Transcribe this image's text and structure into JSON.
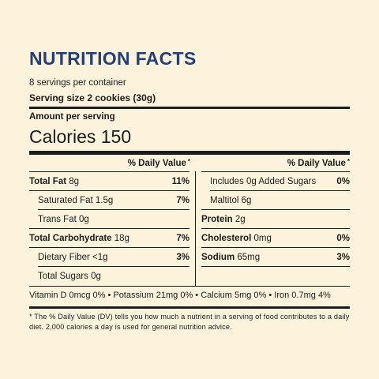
{
  "label": {
    "title": "NUTRITION FACTS",
    "servings_per_container": "8 servings per container",
    "serving_size": "Serving size 2 cookies (30g)",
    "amount_per_serving": "Amount per serving",
    "calories": "Calories 150",
    "dv_header": "% Daily Value",
    "dv_star": "*",
    "left_rows": [
      {
        "name": "Total Fat",
        "amount": "8g",
        "pct": "11%"
      },
      {
        "name": "Saturated Fat",
        "amount": "1.5g",
        "pct": "7%"
      },
      {
        "name": "Trans Fat",
        "amount": "0g",
        "pct": ""
      },
      {
        "name": "Total Carbohydrate",
        "amount": "18g",
        "pct": "7%"
      },
      {
        "name": "Dietary Fiber",
        "amount": "<1g",
        "pct": "3%"
      },
      {
        "name": "Total Sugars",
        "amount": "0g",
        "pct": ""
      }
    ],
    "right_rows": [
      {
        "name": "Includes 0g Added Sugars",
        "amount": "",
        "pct": "0%"
      },
      {
        "name": "Maltitol",
        "amount": "6g",
        "pct": ""
      },
      {
        "name": "Protein",
        "amount": "2g",
        "pct": ""
      },
      {
        "name": "Cholesterol",
        "amount": "0mg",
        "pct": "0%"
      },
      {
        "name": "Sodium",
        "amount": "65mg",
        "pct": "3%"
      }
    ],
    "vitamins": "Vitamin D 0mcg 0% • Potassium 21mg 0% • Calcium 5mg 0% • Iron 0.7mg 4%",
    "footnote": "* The % Daily Value (DV) tells you how much a nutrient in a serving of food contributes to a daily diet. 2,000 calories a day is used for general nutrition advice."
  },
  "colors": {
    "background": "#fdf3dc",
    "title": "#23407a",
    "text": "#1c1c1c"
  }
}
